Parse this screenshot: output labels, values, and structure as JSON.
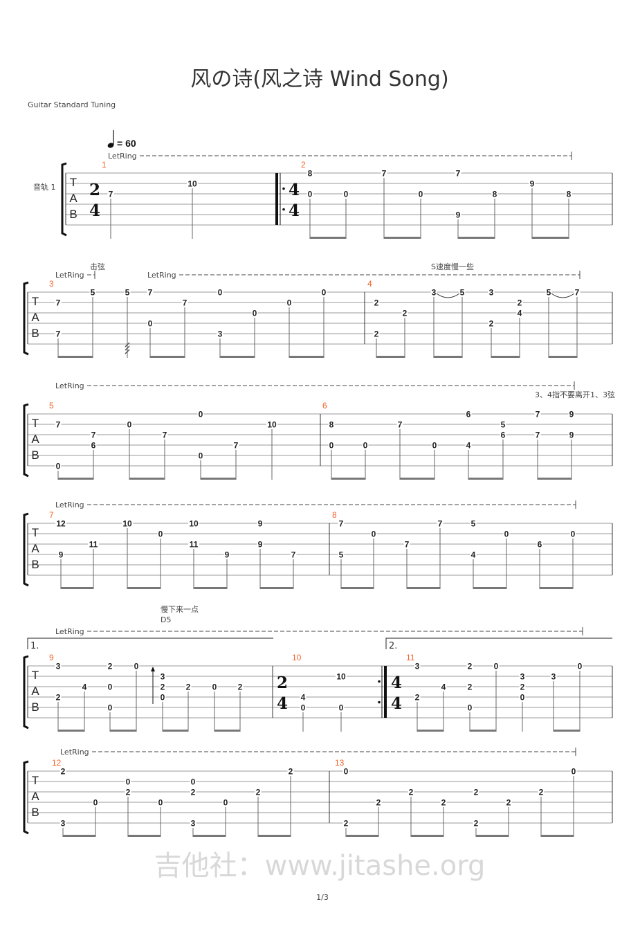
{
  "header": {
    "title": "风の诗(风之诗 Wind Song)",
    "tuning": "Guitar Standard Tuning",
    "tempo": "= 60",
    "track_label": "音轨 1"
  },
  "annotations": {
    "letring": "LetRing",
    "strike": "击弦",
    "slow_down_s": "S速度慢一些",
    "finger_note": "3、4指不要离开1、3弦",
    "slow_down": "慢下来一点",
    "chord": "D5",
    "volta_1": "1.",
    "volta_2": "2."
  },
  "tab_clef": [
    "T",
    "A",
    "B"
  ],
  "footer": {
    "page": "1/3"
  },
  "watermark": "吉他社：www.jitashe.org",
  "colors": {
    "measure_number": "#f4622a",
    "beam": "#777777",
    "staff_line": "#999999"
  },
  "measures": [
    {
      "number": "1",
      "time_signature": [
        "2",
        "4"
      ],
      "beats": [
        {
          "d": "q",
          "n": [
            [
              3,
              "7"
            ]
          ]
        },
        {
          "d": "q",
          "n": [
            [
              2,
              "10"
            ]
          ]
        }
      ],
      "beams": []
    },
    {
      "number": "2",
      "repeat_start": true,
      "time_signature": [
        "4",
        "4"
      ],
      "beats": [
        {
          "n": [
            [
              1,
              "8"
            ],
            [
              3,
              "0"
            ]
          ]
        },
        {
          "n": [
            [
              3,
              "0"
            ]
          ]
        },
        {
          "n": [
            [
              1,
              "7"
            ]
          ]
        },
        {
          "n": [
            [
              3,
              "0"
            ]
          ]
        },
        {
          "n": [
            [
              1,
              "7"
            ],
            [
              5,
              "9"
            ]
          ]
        },
        {
          "n": [
            [
              3,
              "8"
            ]
          ]
        },
        {
          "n": [
            [
              2,
              "9"
            ]
          ]
        },
        {
          "n": [
            [
              3,
              "8"
            ]
          ]
        }
      ],
      "beams": [
        [
          0,
          1
        ],
        [
          2,
          3
        ],
        [
          4,
          5
        ],
        [
          6,
          7
        ]
      ]
    },
    {
      "number": "3",
      "beats": [
        {
          "n": [
            [
              2,
              "7"
            ],
            [
              5,
              "7"
            ]
          ]
        },
        {
          "n": [
            [
              1,
              "5"
            ]
          ]
        },
        {
          "n": [
            [
              1,
              "5"
            ]
          ],
          "grace": true,
          "tremolo": true
        },
        {
          "n": [
            [
              1,
              "7"
            ],
            [
              4,
              "0"
            ]
          ]
        },
        {
          "n": [
            [
              2,
              "7"
            ]
          ]
        },
        {
          "n": [
            [
              1,
              "0"
            ],
            [
              5,
              "3"
            ]
          ]
        },
        {
          "n": [
            [
              3,
              "0"
            ]
          ]
        },
        {
          "n": [
            [
              2,
              "0"
            ]
          ]
        },
        {
          "n": [
            [
              1,
              "0"
            ]
          ]
        }
      ],
      "beams": [
        [
          0,
          1
        ],
        [
          3,
          4
        ],
        [
          5,
          6
        ],
        [
          7,
          8
        ]
      ]
    },
    {
      "number": "4",
      "beats": [
        {
          "n": [
            [
              2,
              "2"
            ],
            [
              5,
              "2"
            ]
          ]
        },
        {
          "n": [
            [
              3,
              "2"
            ]
          ]
        },
        {
          "n": [
            [
              1,
              "3"
            ]
          ],
          "slur_to_next": true
        },
        {
          "n": [
            [
              1,
              "5"
            ]
          ]
        },
        {
          "n": [
            [
              1,
              "3"
            ],
            [
              4,
              "2"
            ]
          ]
        },
        {
          "n": [
            [
              2,
              "2"
            ],
            [
              3,
              "4"
            ]
          ]
        },
        {
          "n": [
            [
              1,
              "5"
            ]
          ],
          "slur_to_next": true
        },
        {
          "n": [
            [
              1,
              "7"
            ]
          ]
        }
      ],
      "beams": [
        [
          0,
          1
        ],
        [
          2,
          3
        ],
        [
          4,
          5
        ],
        [
          6,
          7
        ]
      ]
    },
    {
      "number": "5",
      "beats": [
        {
          "n": [
            [
              2,
              "7"
            ],
            [
              6,
              "0"
            ]
          ]
        },
        {
          "n": [
            [
              3,
              "7"
            ],
            [
              4,
              "6"
            ]
          ]
        },
        {
          "n": [
            [
              2,
              "0"
            ]
          ]
        },
        {
          "n": [
            [
              3,
              "7"
            ]
          ]
        },
        {
          "n": [
            [
              1,
              "0"
            ],
            [
              5,
              "0"
            ]
          ]
        },
        {
          "n": [
            [
              4,
              "7"
            ]
          ]
        },
        {
          "d": "q",
          "n": [
            [
              2,
              "10"
            ]
          ]
        }
      ],
      "beams": [
        [
          0,
          1
        ],
        [
          2,
          3
        ],
        [
          4,
          5
        ]
      ]
    },
    {
      "number": "6",
      "beats": [
        {
          "n": [
            [
              2,
              "8"
            ],
            [
              4,
              "0"
            ]
          ]
        },
        {
          "n": [
            [
              4,
              "0"
            ]
          ]
        },
        {
          "n": [
            [
              2,
              "7"
            ]
          ]
        },
        {
          "n": [
            [
              4,
              "0"
            ]
          ]
        },
        {
          "n": [
            [
              1,
              "6"
            ],
            [
              4,
              "4"
            ]
          ]
        },
        {
          "n": [
            [
              2,
              "5"
            ],
            [
              3,
              "6"
            ]
          ]
        },
        {
          "n": [
            [
              1,
              "7"
            ],
            [
              3,
              "7"
            ]
          ]
        },
        {
          "n": [
            [
              1,
              "9"
            ],
            [
              3,
              "9"
            ]
          ]
        }
      ],
      "beams": [
        [
          0,
          1
        ],
        [
          2,
          3
        ],
        [
          4,
          5
        ],
        [
          6,
          7
        ]
      ]
    },
    {
      "number": "7",
      "beats": [
        {
          "n": [
            [
              1,
              "12"
            ],
            [
              4,
              "9"
            ]
          ]
        },
        {
          "n": [
            [
              3,
              "11"
            ]
          ]
        },
        {
          "n": [
            [
              1,
              "10"
            ]
          ]
        },
        {
          "n": [
            [
              2,
              "0"
            ]
          ]
        },
        {
          "n": [
            [
              1,
              "10"
            ],
            [
              3,
              "11"
            ]
          ]
        },
        {
          "n": [
            [
              4,
              "9"
            ]
          ]
        },
        {
          "n": [
            [
              1,
              "9"
            ],
            [
              3,
              "9"
            ]
          ]
        },
        {
          "n": [
            [
              4,
              "7"
            ]
          ]
        }
      ],
      "beams": [
        [
          0,
          1
        ],
        [
          2,
          3
        ],
        [
          4,
          5
        ],
        [
          6,
          7
        ]
      ]
    },
    {
      "number": "8",
      "beats": [
        {
          "n": [
            [
              1,
              "7"
            ],
            [
              4,
              "5"
            ]
          ]
        },
        {
          "n": [
            [
              2,
              "0"
            ]
          ]
        },
        {
          "n": [
            [
              3,
              "7"
            ]
          ]
        },
        {
          "n": [
            [
              1,
              "7"
            ]
          ]
        },
        {
          "n": [
            [
              1,
              "5"
            ],
            [
              4,
              "4"
            ]
          ]
        },
        {
          "n": [
            [
              2,
              "0"
            ]
          ]
        },
        {
          "n": [
            [
              3,
              "6"
            ]
          ]
        },
        {
          "n": [
            [
              2,
              "0"
            ]
          ]
        }
      ],
      "beams": [
        [
          0,
          1
        ],
        [
          2,
          3
        ],
        [
          4,
          5
        ],
        [
          6,
          7
        ]
      ]
    },
    {
      "number": "9",
      "beats": [
        {
          "n": [
            [
              1,
              "3"
            ],
            [
              4,
              "2"
            ]
          ]
        },
        {
          "n": [
            [
              3,
              "4"
            ]
          ]
        },
        {
          "n": [
            [
              1,
              "2"
            ],
            [
              3,
              "0"
            ],
            [
              5,
              "0"
            ]
          ]
        },
        {
          "n": [
            [
              1,
              "0"
            ]
          ]
        },
        {
          "n": [
            [
              2,
              "3"
            ],
            [
              3,
              "2"
            ],
            [
              4,
              "0"
            ]
          ],
          "upstroke": true
        },
        {
          "n": [
            [
              3,
              "2"
            ]
          ]
        },
        {
          "n": [
            [
              3,
              "0"
            ]
          ]
        },
        {
          "n": [
            [
              3,
              "2"
            ]
          ]
        }
      ],
      "beams": [
        [
          0,
          1
        ],
        [
          2,
          3
        ],
        [
          4,
          5
        ],
        [
          6,
          7
        ]
      ]
    },
    {
      "number": "10",
      "time_signature": [
        "2",
        "4"
      ],
      "repeat_end": true,
      "beats": [
        {
          "d": "q",
          "n": [
            [
              4,
              "4"
            ],
            [
              5,
              "0"
            ]
          ]
        },
        {
          "d": "q",
          "n": [
            [
              2,
              "10"
            ],
            [
              5,
              "0"
            ]
          ]
        }
      ],
      "beams": []
    },
    {
      "number": "11",
      "time_signature": [
        "4",
        "4"
      ],
      "beats": [
        {
          "n": [
            [
              1,
              "3"
            ],
            [
              4,
              "2"
            ]
          ]
        },
        {
          "n": [
            [
              3,
              "4"
            ]
          ]
        },
        {
          "n": [
            [
              1,
              "2"
            ],
            [
              3,
              "2"
            ],
            [
              5,
              "0"
            ]
          ]
        },
        {
          "n": [
            [
              1,
              "0"
            ]
          ]
        },
        {
          "d": "q",
          "n": [
            [
              2,
              "3"
            ],
            [
              3,
              "2"
            ],
            [
              4,
              "0"
            ]
          ]
        },
        {
          "n": [
            [
              2,
              "3"
            ]
          ]
        },
        {
          "n": [
            [
              1,
              "0"
            ]
          ]
        }
      ],
      "beams": [
        [
          0,
          1
        ],
        [
          2,
          3
        ],
        [
          5,
          6
        ]
      ]
    },
    {
      "number": "12",
      "beats": [
        {
          "n": [
            [
              1,
              "2"
            ],
            [
              6,
              "3"
            ]
          ]
        },
        {
          "n": [
            [
              4,
              "0"
            ]
          ]
        },
        {
          "n": [
            [
              2,
              "0"
            ],
            [
              3,
              "2"
            ]
          ]
        },
        {
          "n": [
            [
              4,
              "0"
            ]
          ]
        },
        {
          "n": [
            [
              2,
              "0"
            ],
            [
              3,
              "2"
            ],
            [
              6,
              "3"
            ]
          ]
        },
        {
          "n": [
            [
              4,
              "0"
            ]
          ]
        },
        {
          "n": [
            [
              3,
              "2"
            ]
          ]
        },
        {
          "n": [
            [
              1,
              "2"
            ]
          ]
        }
      ],
      "beams": [
        [
          0,
          1
        ],
        [
          2,
          3
        ],
        [
          4,
          5
        ],
        [
          6,
          7
        ]
      ]
    },
    {
      "number": "13",
      "beats": [
        {
          "n": [
            [
              1,
              "0"
            ],
            [
              6,
              "2"
            ]
          ]
        },
        {
          "n": [
            [
              4,
              "2"
            ]
          ]
        },
        {
          "n": [
            [
              3,
              "2"
            ]
          ]
        },
        {
          "n": [
            [
              4,
              "2"
            ]
          ]
        },
        {
          "n": [
            [
              3,
              "2"
            ],
            [
              6,
              "2"
            ]
          ]
        },
        {
          "n": [
            [
              4,
              "2"
            ]
          ]
        },
        {
          "n": [
            [
              3,
              "2"
            ]
          ]
        },
        {
          "n": [
            [
              1,
              "0"
            ]
          ]
        }
      ],
      "beams": [
        [
          0,
          1
        ],
        [
          2,
          3
        ],
        [
          4,
          5
        ],
        [
          6,
          7
        ]
      ]
    }
  ]
}
